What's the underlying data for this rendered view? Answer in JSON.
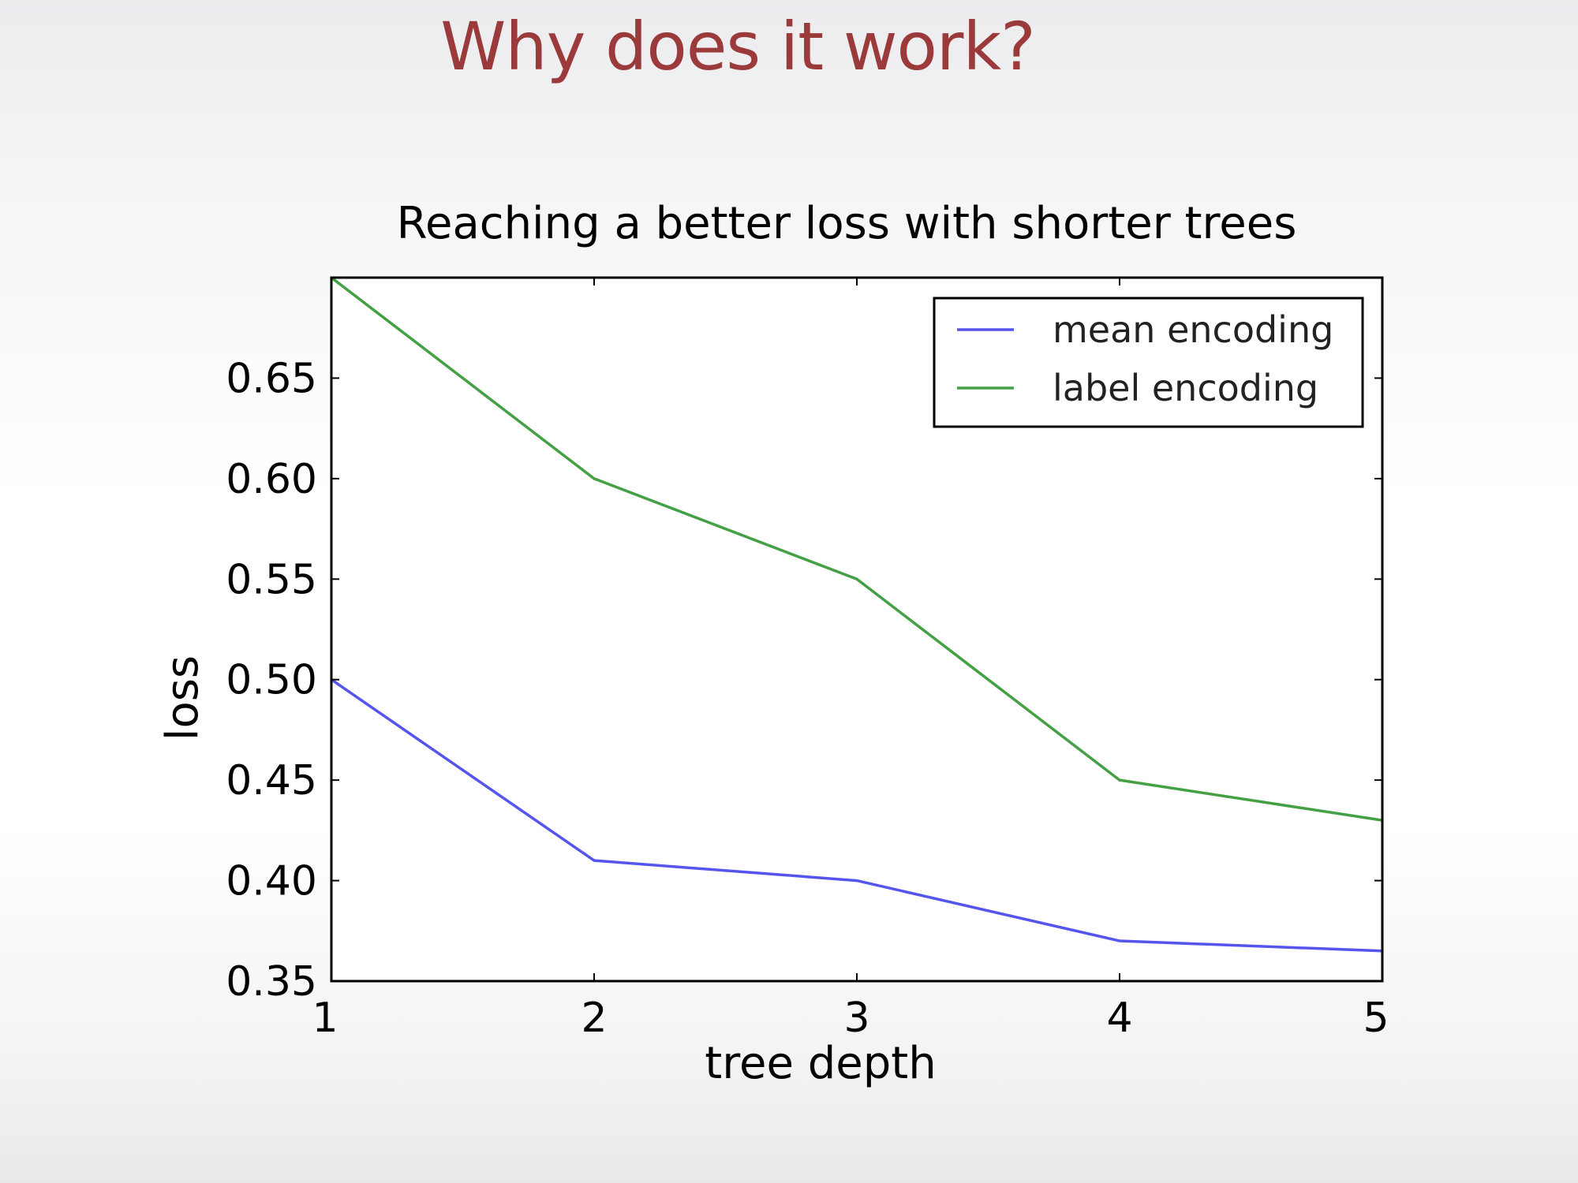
{
  "slide": {
    "title": "Why does it work?"
  },
  "chart_data": {
    "type": "line",
    "title": "Reaching a better loss with shorter trees",
    "xlabel": "tree depth",
    "ylabel": "loss",
    "x": [
      1,
      2,
      3,
      4,
      5
    ],
    "xlim": [
      1,
      5
    ],
    "ylim": [
      0.35,
      0.7
    ],
    "xticks": [
      "1",
      "2",
      "3",
      "4",
      "5"
    ],
    "yticks": [
      {
        "value": 0.35,
        "label": "0.35"
      },
      {
        "value": 0.4,
        "label": "0.40"
      },
      {
        "value": 0.45,
        "label": "0.45"
      },
      {
        "value": 0.5,
        "label": "0.50"
      },
      {
        "value": 0.55,
        "label": "0.55"
      },
      {
        "value": 0.6,
        "label": "0.60"
      },
      {
        "value": 0.65,
        "label": "0.65"
      }
    ],
    "grid": false,
    "legend_position": "top-right",
    "series": [
      {
        "name": "mean encoding",
        "color": "#5555ee",
        "values": [
          0.5,
          0.41,
          0.4,
          0.37,
          0.365
        ]
      },
      {
        "name": "label encoding",
        "color": "#44a044",
        "values": [
          0.7,
          0.6,
          0.55,
          0.45,
          0.43
        ]
      }
    ]
  }
}
